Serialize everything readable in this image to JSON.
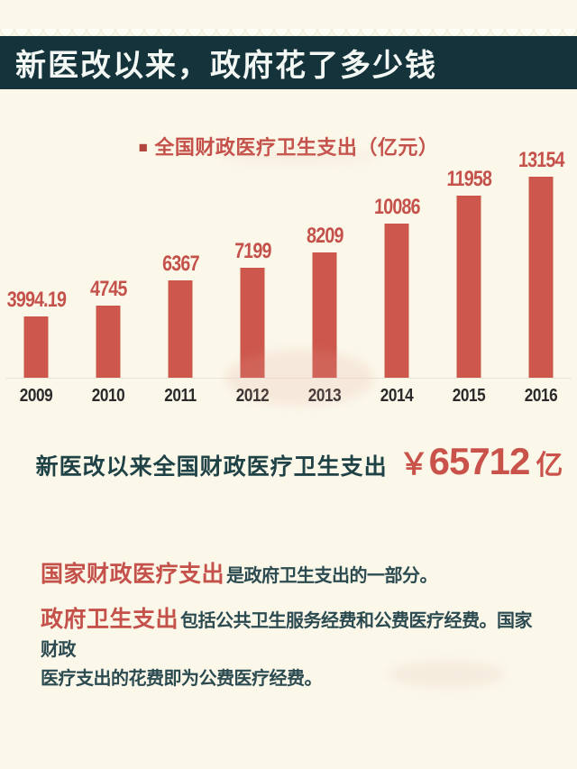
{
  "colors": {
    "background_cream": "#fbf8ea",
    "header_bar_teal": "#15333b",
    "header_text": "#f3f8f4",
    "bar_red": "#cd574c",
    "label_red": "#c5514b",
    "accent_red": "#c9534a",
    "dark_teal_text": "#1f4247",
    "axis_text": "#2b2b2b"
  },
  "header": {
    "title": "新医改以来，政府花了多少钱"
  },
  "chart_data": {
    "type": "bar",
    "title": "全国财政医疗卫生支出（亿元）",
    "legend_marker": "■",
    "legend_position": "top-center",
    "series": [
      {
        "name": "全国财政医疗卫生支出",
        "values": [
          3994.19,
          4745,
          6367,
          7199,
          8209,
          10086,
          11958,
          13154
        ]
      }
    ],
    "categories": [
      "2009",
      "2010",
      "2011",
      "2012",
      "2013",
      "2014",
      "2015",
      "2016"
    ],
    "values": [
      3994.19,
      4745,
      6367,
      7199,
      8209,
      10086,
      11958,
      13154
    ],
    "value_labels": [
      "3994.19",
      "4745",
      "6367",
      "7199",
      "8209",
      "10086",
      "11958",
      "13154"
    ],
    "unit": "亿元",
    "xlabel": "",
    "ylabel": "",
    "ylim": [
      0,
      14000
    ],
    "grid": false
  },
  "summary": {
    "text": "新医改以来全国财政医疗卫生支出",
    "currency": "￥",
    "amount": "65712",
    "unit": "亿"
  },
  "notes": [
    {
      "lead": "国家财政医疗支出",
      "text": "是政府卫生支出的一部分。"
    },
    {
      "lead": "政府卫生支出",
      "text_line1": "包括公共卫生服务经费和公费医疗经费。国家财政",
      "text_line2": "医疗支出的花费即为公费医疗经费。"
    }
  ]
}
